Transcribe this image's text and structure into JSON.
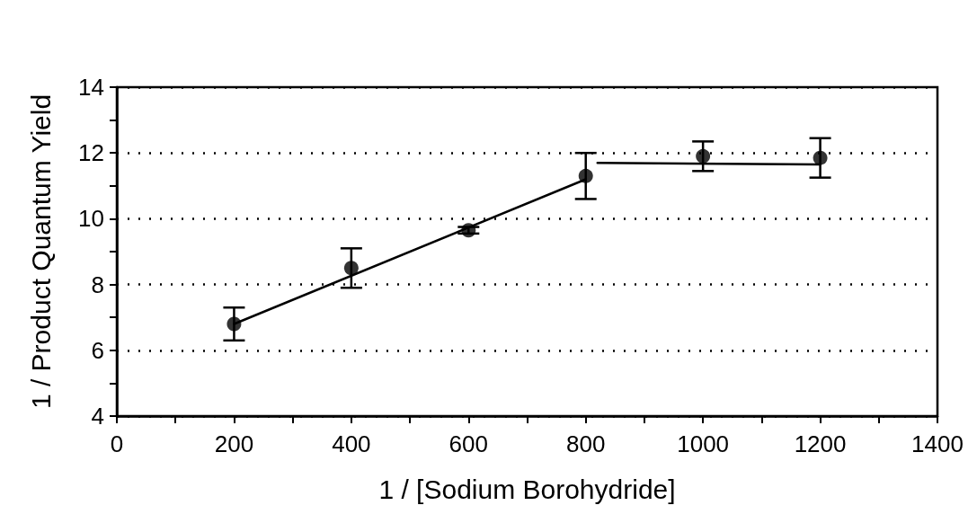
{
  "chart_data": {
    "type": "scatter",
    "xlabel": "1 / [Sodium Borohydride]",
    "ylabel": "1 / Product Quantum Yield",
    "xlim": [
      0,
      1400
    ],
    "xticks": [
      0,
      {
        "value": 100,
        "label": null
      },
      200,
      {
        "value": 300,
        "label": null
      },
      400,
      {
        "value": 500,
        "label": null
      },
      600,
      {
        "value": 700,
        "label": null
      },
      800,
      {
        "value": 900,
        "label": null
      },
      1000,
      {
        "value": 1100,
        "label": null
      },
      1200,
      {
        "value": 1300,
        "label": null
      },
      1400
    ],
    "ylim": [
      4,
      14
    ],
    "yticks": [
      4,
      {
        "value": 5,
        "label": null
      },
      6,
      {
        "value": 7,
        "label": null
      },
      8,
      {
        "value": 9,
        "label": null
      },
      10,
      {
        "value": 11,
        "label": null
      },
      12,
      {
        "value": 13,
        "label": null
      },
      14
    ],
    "grid": "y",
    "marker": "circle",
    "series": [
      {
        "color": "#000000",
        "x": [
          200,
          400,
          600,
          800,
          1000,
          1200
        ],
        "values": [
          6.8,
          8.5,
          9.65,
          11.3,
          11.9,
          11.85
        ],
        "errors": [
          0.5,
          0.6,
          0.1,
          0.7,
          0.45,
          0.6
        ]
      },
      {
        "type": "line",
        "color": "#000000",
        "marker": "none",
        "line_style": "solid",
        "x": [
          200,
          800
        ],
        "values": [
          6.8,
          11.2
        ]
      },
      {
        "type": "line",
        "color": "#000000",
        "marker": "none",
        "line_style": "solid",
        "x": [
          820,
          1200
        ],
        "values": [
          11.7,
          11.65
        ]
      }
    ]
  }
}
